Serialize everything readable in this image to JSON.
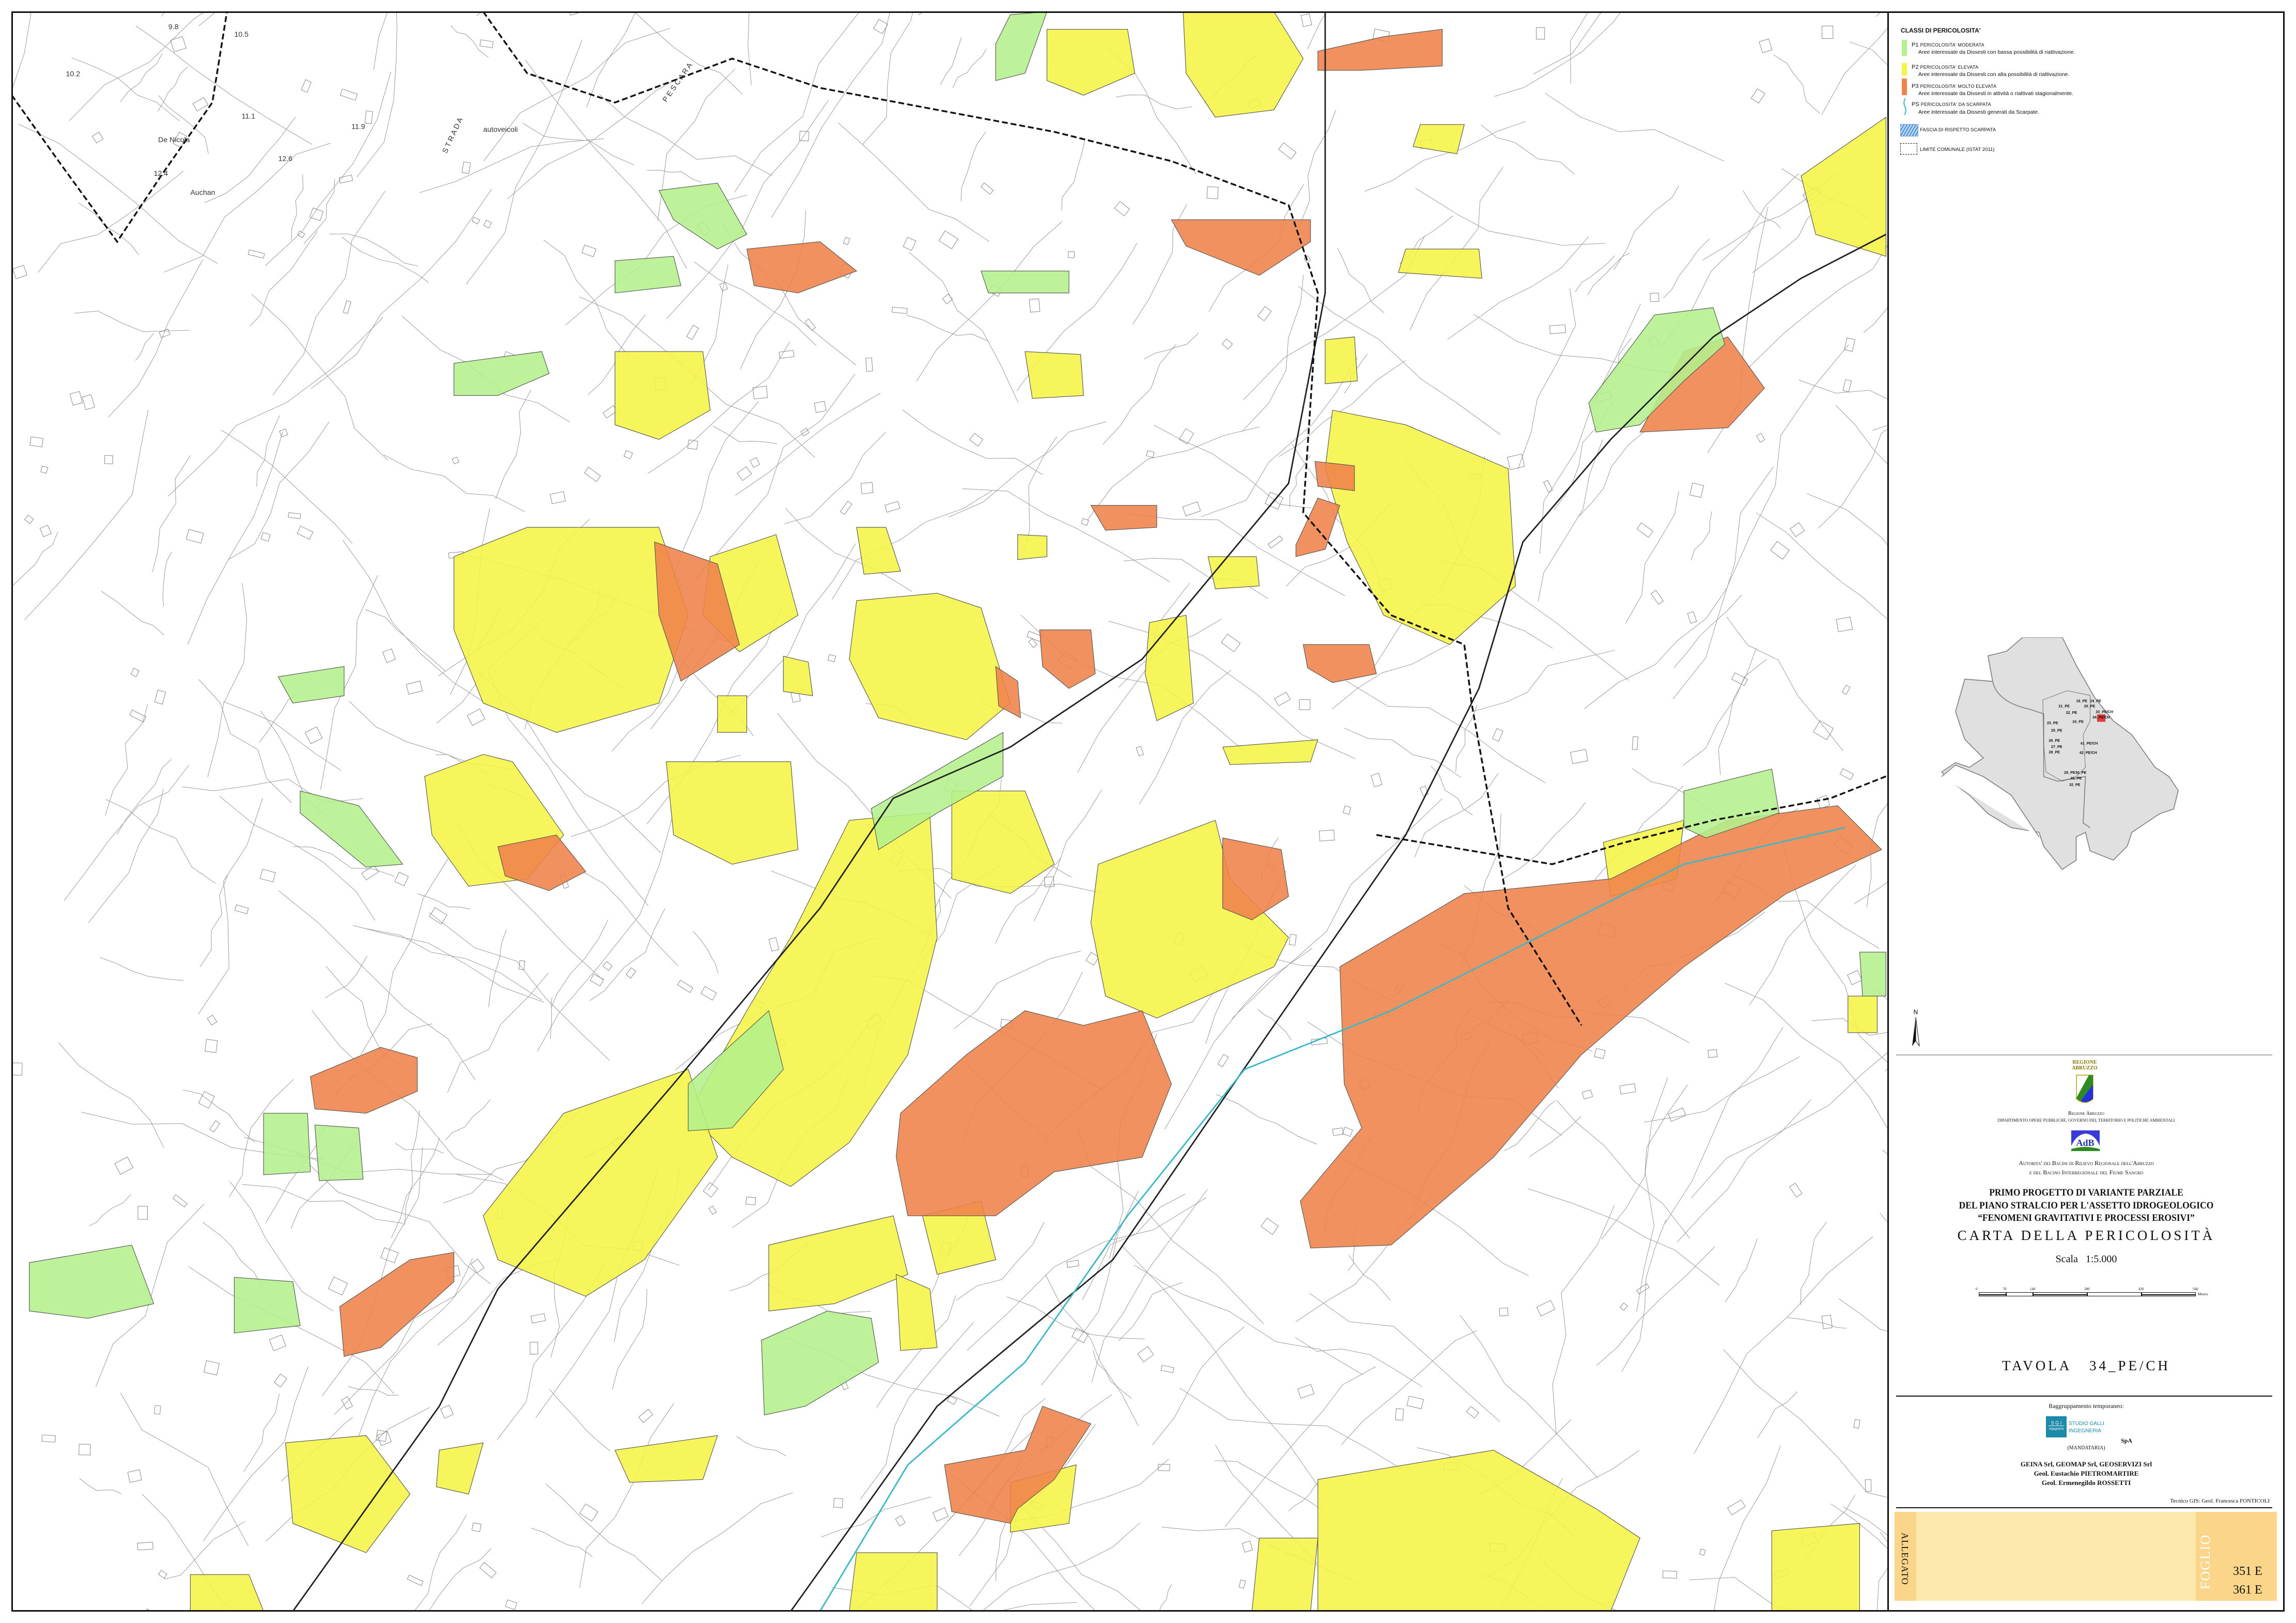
{
  "legend": {
    "title": "CLASSI DI PERICOLOSITA'",
    "classes": [
      {
        "code": "P1",
        "name": "Pericolosita' Moderata",
        "description": "Aree interessate da Dissesti con bassa possibilità di riattivazione.",
        "color": "#b4f08c"
      },
      {
        "code": "P2",
        "name": "Pericolosita' Elevata",
        "description": "Aree interessate da Dissesti con alta possibilità di riattivazione.",
        "color": "#f5f545"
      },
      {
        "code": "P3",
        "name": "Pericolosita' Molto Elevata",
        "description": "Aree interessate da Dissesti in attività o riattivati stagionalmente.",
        "color": "#f0824a"
      },
      {
        "code": "PS",
        "name": "Pericolosita' da Scarpata",
        "description": "Aree interessate da Dissesti generati da Scarpate.",
        "color": "#3ab8c8"
      }
    ],
    "hatch_label": "FASCIA DI RISPETTO SCARPATA",
    "boundary_label": "LIMITE COMUNALE (ISTAT 2011)"
  },
  "inset": {
    "sheets": [
      "18_PE",
      "19_PE",
      "20_PE",
      "21_PE",
      "22_PE",
      "23_PE",
      "24_PE",
      "25_PE",
      "26_PE",
      "27_PE",
      "28_PE",
      "29_PE",
      "30_PE",
      "31_PE",
      "32_PE",
      "33_PE/CH",
      "34_PE/CH",
      "41_PE/CH",
      "42_PE/CH"
    ],
    "highlighted": "34_PE/CH",
    "highlight_color": "#e03c3c"
  },
  "north_label": "N",
  "title_block": {
    "region_logo_text": "REGIONE ABRUZZO",
    "region": "Regione Abruzzo",
    "department": "DIPARTIMENTO OPERE PUBBLICHE, GOVERNO DEL TERRITORIO E POLITICHE AMBIENTALI",
    "authority_logo_text": "AdB",
    "authority_line1": "Autorita' dei Bacini di Rilievo Regionale dell'Abruzzo",
    "authority_line2": "e del Bacino Interregionale del Fiume Sangro",
    "title_line1": "PRIMO PROGETTO DI VARIANTE PARZIALE",
    "title_line2": "DEL PIANO STRALCIO PER L'ASSETTO IDROGEOLOGICO",
    "title_line3": "“FENOMENI GRAVITATIVI E PROCESSI EROSIVI”",
    "map_title": "CARTA DELLA PERICOLOSITÀ",
    "scale_label": "Scala   1:5.000",
    "scale_ticks": [
      "0",
      "70",
      "140",
      "280",
      "420",
      "560"
    ],
    "scale_unit": "Meters",
    "sheet": "TAVOLA   34_PE/CH",
    "grouping": "Raggruppamento temporaneo:",
    "sgi_logo": "S G I",
    "sgi_sub": "Ingegneria",
    "sgi_name1": "STUDIO GALLI",
    "sgi_name2": "INGEGNERIA",
    "spa": "SpA",
    "mandataria": "(MANDATARIA)",
    "partners": "GEINA Srl, GEOMAP Srl, GEOSERVIZI Srl",
    "geologist1": "Geol. Eustachio PIETROMARTIRE",
    "geologist2": "Geol. Ermenegildo ROSSETTI",
    "gis_tech": "Tecnico GIS: Geol. Francesca FONTICOLI",
    "allegato_label": "ALLEGATO",
    "foglio_label": "FOGLIO",
    "foglio_1": "351 E",
    "foglio_2": "361 E"
  },
  "map_labels": [
    "Auchan",
    "De Nicola",
    "autoveicoli",
    "P E S C A R A",
    "S T R A D A",
    "10.2",
    "9.8",
    "10.5",
    "11.1",
    "12.6",
    "11.9",
    "12.4"
  ]
}
